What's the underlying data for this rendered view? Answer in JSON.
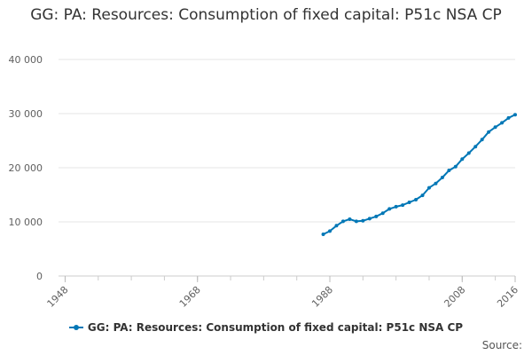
{
  "chart_data": {
    "type": "line",
    "title": "GG: PA: Resources: Consumption of fixed capital: P51c NSA CP",
    "xlabel": "",
    "ylabel": "",
    "xlim": [
      1947,
      2016
    ],
    "ylim": [
      0,
      40000
    ],
    "x_ticks": [
      "1948",
      "1968",
      "1988",
      "2008",
      "2016"
    ],
    "x_tick_values": [
      1948,
      1968,
      1988,
      2008,
      2016
    ],
    "y_ticks": [
      "0",
      "10 000",
      "20 000",
      "30 000",
      "40 000"
    ],
    "y_tick_values": [
      0,
      10000,
      20000,
      30000,
      40000
    ],
    "grid": true,
    "legend_position": "bottom",
    "series": [
      {
        "name": "GG: PA: Resources: Consumption of fixed capital: P51c NSA CP",
        "color": "#0077b6",
        "x": [
          1987,
          1988,
          1989,
          1990,
          1991,
          1992,
          1993,
          1994,
          1995,
          1996,
          1997,
          1998,
          1999,
          2000,
          2001,
          2002,
          2003,
          2004,
          2005,
          2006,
          2007,
          2008,
          2009,
          2010,
          2011,
          2012,
          2013,
          2014,
          2015,
          2016
        ],
        "values": [
          7700,
          8300,
          9300,
          10100,
          10500,
          10100,
          10200,
          10600,
          11000,
          11600,
          12400,
          12800,
          13100,
          13600,
          14100,
          14900,
          16300,
          17100,
          18200,
          19500,
          20200,
          21600,
          22700,
          23900,
          25200,
          26600,
          27500,
          28300,
          29200,
          29800
        ]
      }
    ]
  },
  "source_label": "Source:"
}
